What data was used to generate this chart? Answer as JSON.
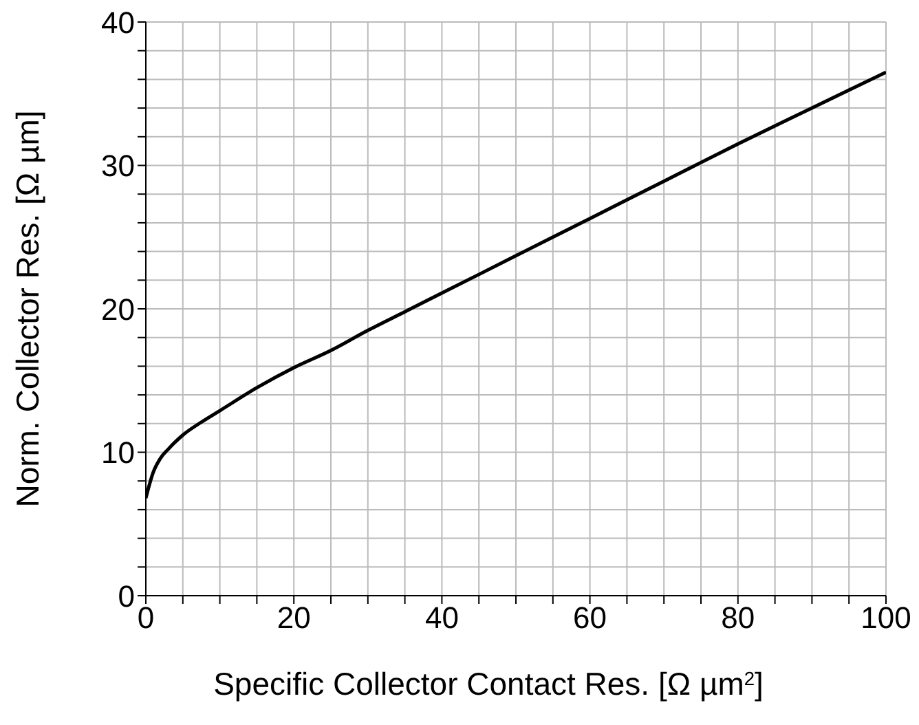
{
  "chart_data": {
    "type": "line",
    "xlabel": "Specific Collector Contact Res. [Ω µm$^{2}$]",
    "ylabel": "Norm. Collector Res. [Ω µm]",
    "x": [
      0,
      1,
      2,
      3,
      5,
      7.5,
      10,
      15,
      20,
      25,
      30,
      35,
      40,
      50,
      60,
      70,
      80,
      90,
      100
    ],
    "series": [
      {
        "color": "#000000",
        "values": [
          6.8,
          8.6,
          9.6,
          10.2,
          11.2,
          12.1,
          12.9,
          14.5,
          15.9,
          17.1,
          18.5,
          19.8,
          21.1,
          23.7,
          26.3,
          28.9,
          31.5,
          34.0,
          36.5
        ]
      }
    ],
    "xlim": [
      0,
      100
    ],
    "xticks": [
      0,
      {
        "value": 5,
        "label": null
      },
      {
        "value": 10,
        "label": null
      },
      {
        "value": 15,
        "label": null
      },
      20,
      {
        "value": 25,
        "label": null
      },
      {
        "value": 30,
        "label": null
      },
      {
        "value": 35,
        "label": null
      },
      40,
      {
        "value": 45,
        "label": null
      },
      {
        "value": 50,
        "label": null
      },
      {
        "value": 55,
        "label": null
      },
      60,
      {
        "value": 65,
        "label": null
      },
      {
        "value": 70,
        "label": null
      },
      {
        "value": 75,
        "label": null
      },
      80,
      {
        "value": 85,
        "label": null
      },
      {
        "value": 90,
        "label": null
      },
      {
        "value": 95,
        "label": null
      },
      100
    ],
    "ylim": [
      0,
      40
    ],
    "yticks": [
      0,
      {
        "value": 2,
        "label": null
      },
      {
        "value": 4,
        "label": null
      },
      {
        "value": 6,
        "label": null
      },
      {
        "value": 8,
        "label": null
      },
      10,
      {
        "value": 12,
        "label": null
      },
      {
        "value": 14,
        "label": null
      },
      {
        "value": 16,
        "label": null
      },
      {
        "value": 18,
        "label": null
      },
      20,
      {
        "value": 22,
        "label": null
      },
      {
        "value": 24,
        "label": null
      },
      {
        "value": 26,
        "label": null
      },
      {
        "value": 28,
        "label": null
      },
      30,
      {
        "value": 32,
        "label": null
      },
      {
        "value": 34,
        "label": null
      },
      {
        "value": 36,
        "label": null
      },
      {
        "value": 38,
        "label": null
      },
      40
    ],
    "grid": true,
    "marker": "none",
    "line_style": "solid",
    "legend": false
  }
}
